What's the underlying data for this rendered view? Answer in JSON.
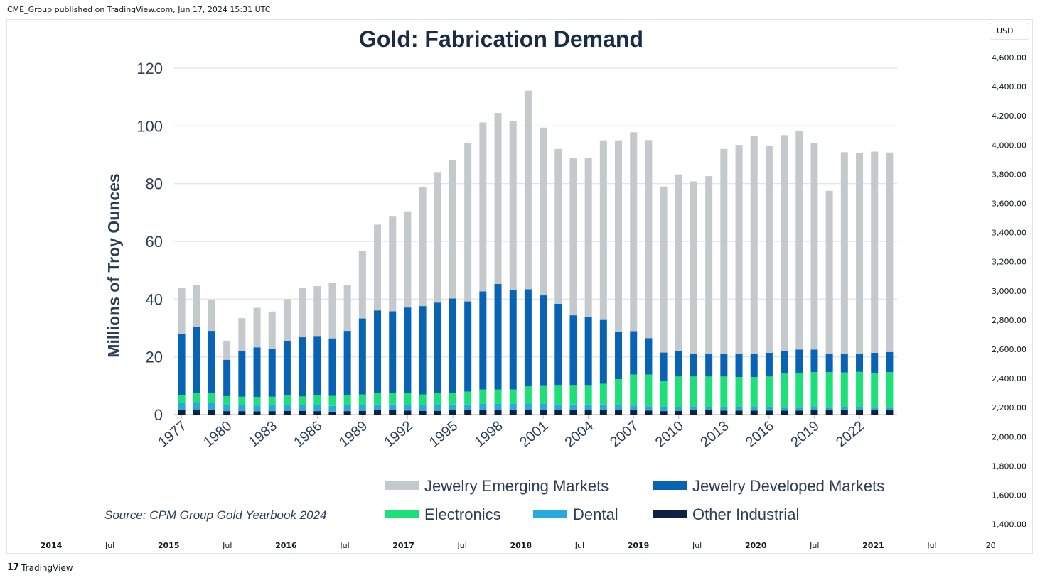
{
  "header": {
    "published_by": "CME_Group published on TradingView.com, Jun 17, 2024 15:31 UTC"
  },
  "price_scale": {
    "currency": "USD",
    "labels": [
      "4,600.00",
      "4,400.00",
      "4,200.00",
      "4,000.00",
      "3,800.00",
      "3,600.00",
      "3,400.00",
      "3,200.00",
      "3,000.00",
      "2,800.00",
      "2,600.00",
      "2,400.00",
      "2,200.00",
      "2,000.00",
      "1,800.00",
      "1,600.00",
      "1,400.00"
    ]
  },
  "time_scale": {
    "labels": [
      "2014",
      "Jul",
      "2015",
      "Jul",
      "2016",
      "Jul",
      "2017",
      "Jul",
      "2018",
      "Jul",
      "2019",
      "Jul",
      "2020",
      "Jul",
      "2021",
      "Jul",
      "20"
    ]
  },
  "footer": {
    "brand": "TradingView",
    "logo_glyph": "17"
  },
  "chart_data": {
    "type": "bar",
    "stacked": true,
    "title": "Gold: Fabrication Demand",
    "xlabel": "",
    "ylabel": "Millions of Troy Ounces",
    "ylim": [
      0,
      120
    ],
    "yticks": [
      0,
      20,
      40,
      60,
      80,
      100,
      120
    ],
    "grid": true,
    "categories": [
      "1977",
      "1978",
      "1979",
      "1980",
      "1981",
      "1982",
      "1983",
      "1984",
      "1985",
      "1986",
      "1987",
      "1988",
      "1989",
      "1990",
      "1991",
      "1992",
      "1993",
      "1994",
      "1995",
      "1996",
      "1997",
      "1998",
      "1999",
      "2000",
      "2001",
      "2002",
      "2003",
      "2004",
      "2005",
      "2006",
      "2007",
      "2008",
      "2009",
      "2010",
      "2011",
      "2012",
      "2013",
      "2014",
      "2015",
      "2016",
      "2017",
      "2018",
      "2019",
      "2020",
      "2021",
      "2022",
      "2023",
      "2024"
    ],
    "xtick_labels": [
      "1977",
      "1980",
      "1983",
      "1986",
      "1989",
      "1992",
      "1995",
      "1998",
      "2001",
      "2004",
      "2007",
      "2010",
      "2013",
      "2016",
      "2019",
      "2022"
    ],
    "series": [
      {
        "name": "Other Industrial",
        "color": "#0d2240",
        "values": [
          1.5,
          1.8,
          1.5,
          1.2,
          1.2,
          1.1,
          1.2,
          1.3,
          1.3,
          1.2,
          1.0,
          1.2,
          1.3,
          1.5,
          1.5,
          1.4,
          1.3,
          1.3,
          1.5,
          1.5,
          1.5,
          1.5,
          1.5,
          1.6,
          1.5,
          1.5,
          1.5,
          1.5,
          1.5,
          1.5,
          1.5,
          1.4,
          1.2,
          1.3,
          1.5,
          1.5,
          1.4,
          1.4,
          1.4,
          1.4,
          1.4,
          1.4,
          1.5,
          1.5,
          1.6,
          1.6,
          1.5,
          1.5
        ]
      },
      {
        "name": "Dental",
        "color": "#29a9e0",
        "values": [
          2.5,
          2.5,
          2.5,
          2.2,
          2.0,
          2.0,
          2.0,
          2.0,
          2.0,
          2.0,
          2.0,
          2.0,
          2.0,
          2.0,
          2.0,
          2.0,
          2.0,
          2.0,
          2.0,
          2.0,
          2.2,
          2.2,
          2.2,
          2.2,
          2.2,
          2.0,
          2.0,
          2.0,
          2.0,
          1.8,
          1.6,
          1.5,
          1.4,
          1.4,
          1.3,
          1.2,
          1.2,
          1.1,
          1.1,
          1.1,
          1.0,
          1.0,
          1.0,
          0.9,
          0.9,
          0.9,
          0.9,
          0.9
        ]
      },
      {
        "name": "Electronics",
        "color": "#1de07a",
        "values": [
          2.8,
          3.2,
          3.5,
          3.0,
          3.0,
          3.0,
          3.0,
          3.3,
          3.0,
          3.5,
          3.5,
          3.5,
          3.7,
          4.0,
          4.0,
          4.0,
          3.7,
          4.2,
          4.0,
          4.5,
          5.0,
          5.0,
          5.0,
          6.0,
          6.2,
          6.5,
          6.5,
          6.5,
          7.2,
          9.0,
          10.8,
          11.0,
          9.2,
          10.5,
          10.4,
          10.5,
          10.6,
          10.5,
          10.5,
          10.7,
          11.8,
          12.0,
          12.2,
          12.3,
          12.1,
          12.3,
          12.1,
          12.3
        ]
      },
      {
        "name": "Jewelry Developed Markets",
        "color": "#0863b5",
        "values": [
          21.1,
          22.9,
          21.5,
          12.6,
          15.8,
          17.2,
          16.7,
          18.9,
          20.5,
          20.3,
          19.9,
          22.3,
          26.3,
          28.6,
          28.3,
          29.7,
          30.6,
          31.3,
          32.7,
          31.2,
          34.0,
          36.6,
          34.6,
          33.6,
          31.4,
          28.4,
          24.4,
          23.9,
          22.1,
          16.3,
          15.0,
          12.6,
          9.7,
          8.8,
          7.8,
          7.8,
          8.0,
          7.9,
          8.0,
          8.2,
          7.8,
          8.1,
          7.8,
          6.3,
          6.4,
          6.2,
          6.9,
          7.0
        ]
      },
      {
        "name": "Jewelry Emerging Markets",
        "color": "#c4c9cc",
        "values": [
          16.0,
          14.6,
          10.7,
          6.6,
          11.4,
          13.7,
          12.8,
          14.5,
          17.2,
          17.5,
          19.1,
          16.0,
          23.5,
          29.7,
          33.0,
          33.3,
          41.3,
          45.2,
          47.9,
          55.0,
          58.5,
          59.2,
          58.3,
          68.8,
          58.1,
          53.6,
          54.6,
          55.1,
          62.2,
          66.4,
          68.9,
          68.6,
          57.5,
          61.2,
          59.8,
          61.6,
          70.8,
          72.5,
          75.5,
          71.8,
          74.8,
          75.7,
          71.5,
          56.5,
          69.9,
          69.5,
          69.7,
          69.1
        ]
      }
    ],
    "legend": {
      "position": "bottom-right",
      "order": [
        "Jewelry Emerging Markets",
        "Jewelry Developed Markets",
        "Electronics",
        "Dental",
        "Other Industrial"
      ]
    },
    "annotations": [
      "Source: CPM Group Gold Yearbook 2024"
    ]
  }
}
